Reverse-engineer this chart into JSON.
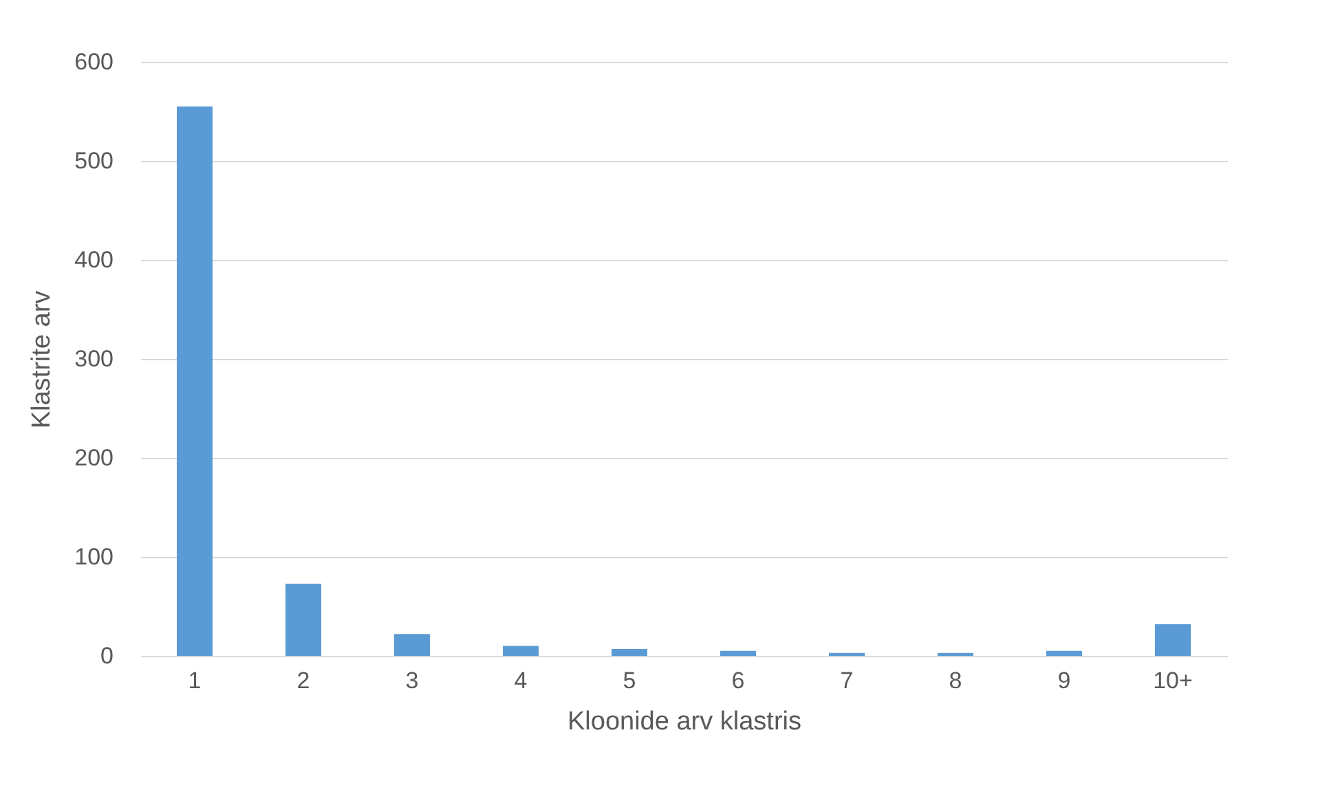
{
  "chart_data": {
    "type": "bar",
    "xlabel": "Kloonide arv klastris",
    "ylabel": "Klastrite arv",
    "categories": [
      "1",
      "2",
      "3",
      "4",
      "5",
      "6",
      "7",
      "8",
      "9",
      "10+"
    ],
    "values": [
      555,
      73,
      22,
      10,
      7,
      5,
      3,
      3,
      5,
      32
    ],
    "color": "#5b9bd5",
    "ylim": [
      0,
      600
    ],
    "yticks": [
      0,
      100,
      200,
      300,
      400,
      500,
      600
    ],
    "grid": "y"
  }
}
